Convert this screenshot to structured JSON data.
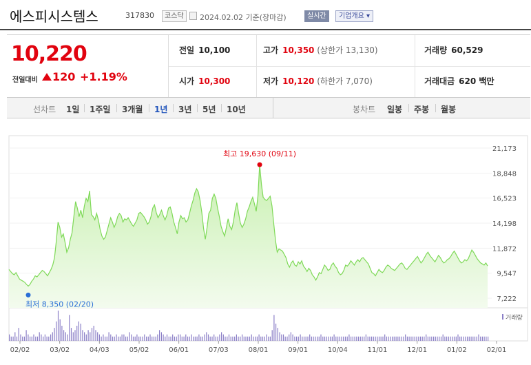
{
  "header": {
    "name": "에스피시스템스",
    "code": "317830",
    "market": "코스닥",
    "date": "2024.02.02 기준(장마감)",
    "live": "실시간",
    "corp_info": "기업개요 ▾"
  },
  "quote": {
    "price": "10,220",
    "change_label": "전일대비",
    "change": "120",
    "change_pct": "+1.19%",
    "prev_close_label": "전일",
    "prev_close": "10,100",
    "high_label": "고가",
    "high": "10,350",
    "upper_limit": "(상한가 13,130)",
    "volume_label": "거래량",
    "volume": "60,529",
    "open_label": "시가",
    "open": "10,300",
    "low_label": "저가",
    "low": "10,120",
    "lower_limit": "(하한가 7,070)",
    "amount_label": "거래대금",
    "amount": "620 백만"
  },
  "tabs": {
    "line_label": "선차트",
    "periods": [
      "1일",
      "1주일",
      "3개월",
      "1년",
      "3년",
      "5년",
      "10년"
    ],
    "active_period": "1년",
    "candle_label": "봉차트",
    "candles": [
      "일봉",
      "주봉",
      "월봉"
    ]
  },
  "chart_data": {
    "type": "area",
    "x_ticks": [
      "02/02",
      "03/02",
      "04/03",
      "05/02",
      "06/01",
      "07/03",
      "08/01",
      "09/01",
      "10/04",
      "11/01",
      "12/01",
      "01/02",
      "02/01"
    ],
    "y_ticks": [
      "21,173",
      "18,848",
      "16,523",
      "14,198",
      "11,872",
      "9,547",
      "7,222"
    ],
    "ylim": [
      7222,
      21173
    ],
    "high_annotation": "최고 19,630 (09/11)",
    "low_annotation": "최저 8,350 (02/20)",
    "volume_label": "거래량",
    "series": [
      {
        "values": [
          9900,
          9700,
          9500,
          9400,
          9600,
          9300,
          9000,
          8900,
          8800,
          8700,
          8500,
          8350,
          8500,
          8800,
          9000,
          9300,
          9200,
          9400,
          9600,
          9800,
          9700,
          9500,
          9300,
          9600,
          9900,
          10300,
          11000,
          12500,
          14300,
          13800,
          12900,
          13200,
          12400,
          11500,
          11900,
          12700,
          13300,
          14800,
          16200,
          15600,
          14800,
          15400,
          14700,
          15800,
          16500,
          16200,
          17200,
          15000,
          14800,
          14500,
          15100,
          14500,
          13600,
          13000,
          12700,
          12900,
          13500,
          14100,
          14700,
          14300,
          13800,
          14200,
          14800,
          15100,
          14900,
          14300,
          14600,
          14500,
          14700,
          14400,
          14100,
          13900,
          14200,
          14500,
          15100,
          15200,
          15000,
          14800,
          14500,
          14100,
          14300,
          14800,
          15600,
          15900,
          15200,
          14700,
          15000,
          15400,
          14900,
          14500,
          14900,
          15600,
          15700,
          15100,
          14300,
          13800,
          13200,
          14300,
          14900,
          14600,
          14700,
          14300,
          14500,
          15100,
          15800,
          16300,
          17000,
          17400,
          17100,
          16300,
          15200,
          13700,
          12700,
          13800,
          15100,
          15400,
          16500,
          16900,
          16500,
          15600,
          14800,
          13900,
          13400,
          13000,
          13800,
          14600,
          13900,
          13600,
          14300,
          15400,
          16100,
          15100,
          14200,
          13800,
          14100,
          14600,
          15300,
          15700,
          16200,
          16600,
          16000,
          15300,
          16700,
          19630,
          17800,
          16600,
          16400,
          16300,
          16500,
          16700,
          15800,
          14200,
          12600,
          11500,
          11800,
          11700,
          11600,
          11300,
          11000,
          10400,
          10100,
          10500,
          10700,
          10300,
          10200,
          10600,
          10400,
          10700,
          10200,
          10000,
          9700,
          10000,
          9800,
          9400,
          9200,
          8900,
          9200,
          9600,
          9500,
          9900,
          10300,
          10100,
          9800,
          9900,
          10300,
          10500,
          10200,
          10000,
          9600,
          9400,
          9500,
          9800,
          10300,
          10200,
          10400,
          10700,
          10500,
          10300,
          10600,
          10800,
          10600,
          10900,
          11000,
          10800,
          10600,
          10400,
          10000,
          9600,
          9500,
          9300,
          9600,
          9900,
          9700,
          9600,
          9800,
          10100,
          10300,
          10200,
          10000,
          9900,
          9800,
          10000,
          10200,
          10400,
          10500,
          10300,
          10000,
          9900,
          10100,
          10300,
          10500,
          10700,
          10900,
          11100,
          10800,
          10500,
          10700,
          11000,
          11300,
          11500,
          11200,
          11000,
          10800,
          10600,
          10900,
          11200,
          11000,
          10700,
          10500,
          10600,
          10800,
          10900,
          11100,
          11400,
          11600,
          11300,
          11000,
          10700,
          10500,
          10600,
          10800,
          10700,
          10900,
          11300,
          11700,
          11500,
          11200,
          10900,
          10700,
          10500,
          10400,
          10300,
          10500,
          10220
        ]
      }
    ],
    "volume": [
      3,
      2,
      2,
      4,
      2,
      6,
      3,
      2,
      2,
      5,
      3,
      2,
      2,
      3,
      2,
      2,
      4,
      3,
      2,
      3,
      2,
      2,
      3,
      4,
      6,
      9,
      14,
      10,
      7,
      5,
      4,
      3,
      12,
      6,
      4,
      5,
      7,
      9,
      8,
      5,
      4,
      3,
      5,
      4,
      6,
      7,
      5,
      4,
      3,
      2,
      3,
      2,
      2,
      4,
      3,
      2,
      2,
      3,
      2,
      2,
      3,
      3,
      2,
      2,
      4,
      3,
      2,
      2,
      3,
      2,
      2,
      2,
      3,
      2,
      2,
      3,
      2,
      2,
      2,
      3,
      5,
      4,
      3,
      2,
      3,
      2,
      2,
      3,
      2,
      2,
      3,
      3,
      2,
      2,
      3,
      2,
      2,
      3,
      2,
      2,
      2,
      3,
      2,
      2,
      3,
      4,
      3,
      2,
      2,
      3,
      2,
      2,
      3,
      4,
      3,
      2,
      2,
      3,
      2,
      2,
      2,
      3,
      2,
      2,
      3,
      2,
      2,
      2,
      2,
      3,
      2,
      2,
      2,
      3,
      2,
      2,
      2,
      3,
      2,
      2,
      5,
      12,
      8,
      6,
      4,
      3,
      3,
      2,
      2,
      3,
      4,
      3,
      2,
      2,
      2,
      3,
      2,
      2,
      2,
      2,
      3,
      2,
      2,
      2,
      2,
      2,
      3,
      2,
      2,
      2,
      2,
      2,
      2,
      3,
      2,
      2,
      2,
      2,
      2,
      2,
      2,
      3,
      2,
      2,
      2,
      2,
      2,
      2,
      2,
      2,
      3,
      2,
      2,
      2,
      2,
      2,
      2,
      2,
      2,
      2,
      3,
      2,
      2,
      2,
      2,
      2,
      2,
      2,
      2,
      2,
      2,
      3,
      2,
      2,
      2,
      2,
      2,
      2,
      2,
      2,
      2,
      2,
      3,
      2,
      2,
      2,
      2,
      2,
      2,
      2,
      2,
      3,
      2,
      2,
      2,
      2,
      2,
      2,
      2,
      3,
      2,
      2,
      2,
      2,
      2,
      2,
      2,
      2,
      2,
      2,
      3,
      2,
      2,
      2,
      2,
      2
    ]
  }
}
